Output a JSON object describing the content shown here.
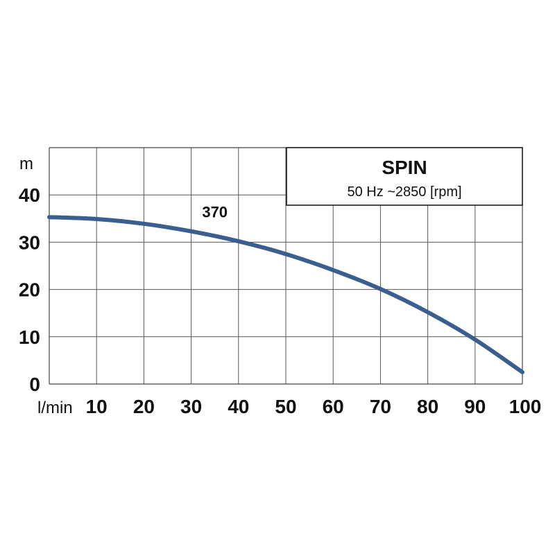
{
  "chart_data": {
    "type": "line",
    "title": "SPIN",
    "subtitle": "50 Hz ~2850 [rpm]",
    "xlabel": "l/min",
    "ylabel": "m",
    "xlim": [
      0,
      100
    ],
    "ylim": [
      0,
      50
    ],
    "x_ticks": [
      "10",
      "20",
      "30",
      "40",
      "50",
      "60",
      "70",
      "80",
      "90",
      "100"
    ],
    "y_ticks": [
      "0",
      "10",
      "20",
      "30",
      "40"
    ],
    "grid": true,
    "legend": "top-right",
    "series": [
      {
        "name": "370",
        "color": "#3a5f8f",
        "x": [
          0,
          10,
          20,
          30,
          40,
          50,
          60,
          70,
          80,
          90,
          100
        ],
        "y": [
          35.3,
          34.9,
          33.9,
          32.3,
          30.2,
          27.5,
          24.1,
          20.1,
          15.2,
          9.4,
          2.5
        ]
      }
    ]
  }
}
